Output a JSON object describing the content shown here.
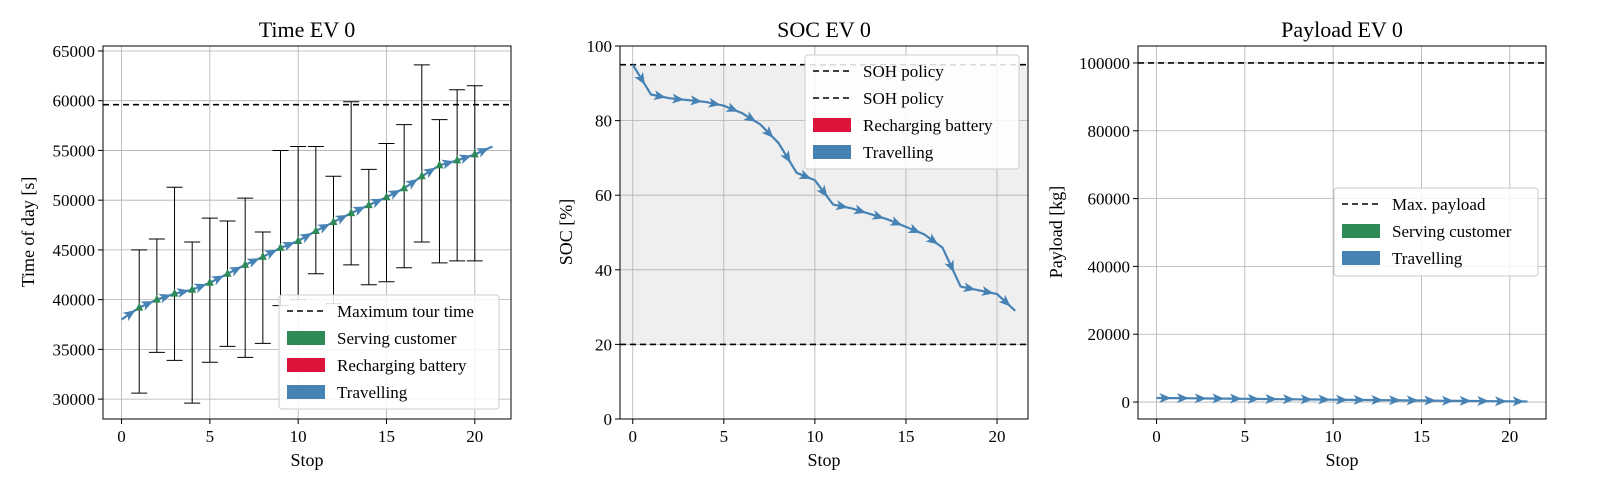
{
  "colors": {
    "travel": "#4682b4",
    "serve": "#2e8b57",
    "recharge": "#dc143c",
    "grid": "#b0b0b0",
    "policy_band": "#efefef"
  },
  "chart_data": [
    {
      "type": "line",
      "title": "Time EV 0",
      "xlabel": "Stop",
      "ylabel": "Time of day [s]",
      "xlim": [
        -1.05,
        22.05
      ],
      "ylim": [
        28000,
        65500
      ],
      "x_ticks": [
        0,
        5,
        10,
        15,
        20
      ],
      "y_ticks": [
        30000,
        35000,
        40000,
        45000,
        50000,
        55000,
        60000,
        65000
      ],
      "grid": true,
      "legend_position": "lower right",
      "legend": [
        {
          "label": "Maximum tour time",
          "kind": "dashed"
        },
        {
          "label": "Serving customer",
          "kind": "patch",
          "color": "#2e8b57"
        },
        {
          "label": "Recharging battery",
          "kind": "patch",
          "color": "#dc143c"
        },
        {
          "label": "Travelling",
          "kind": "patch",
          "color": "#4682b4"
        }
      ],
      "hlines": [
        {
          "y": 59600,
          "style": "dashed"
        }
      ],
      "travel": {
        "x": [
          0,
          1,
          2,
          3,
          4,
          5,
          6,
          7,
          8,
          9,
          10,
          11,
          12,
          13,
          14,
          15,
          16,
          17,
          18,
          19,
          20,
          21
        ],
        "y": [
          38000,
          39200,
          40000,
          40600,
          41000,
          41700,
          42600,
          43500,
          44300,
          45200,
          45900,
          46900,
          47800,
          48700,
          49500,
          50300,
          51200,
          52400,
          53500,
          54000,
          54600,
          55400
        ]
      },
      "time_windows": [
        {
          "x": 1,
          "low": 30600,
          "high": 45000
        },
        {
          "x": 2,
          "low": 34700,
          "high": 46100
        },
        {
          "x": 3,
          "low": 33900,
          "high": 51300
        },
        {
          "x": 4,
          "low": 29600,
          "high": 45800
        },
        {
          "x": 5,
          "low": 33700,
          "high": 48200
        },
        {
          "x": 6,
          "low": 35300,
          "high": 47900
        },
        {
          "x": 7,
          "low": 34200,
          "high": 50200
        },
        {
          "x": 8,
          "low": 35600,
          "high": 46800
        },
        {
          "x": 9,
          "low": 39400,
          "high": 55000
        },
        {
          "x": 10,
          "low": 40000,
          "high": 55400
        },
        {
          "x": 11,
          "low": 42600,
          "high": 55400
        },
        {
          "x": 12,
          "low": 39600,
          "high": 52400
        },
        {
          "x": 13,
          "low": 43500,
          "high": 59900
        },
        {
          "x": 14,
          "low": 41500,
          "high": 53100
        },
        {
          "x": 15,
          "low": 41800,
          "high": 55700
        },
        {
          "x": 16,
          "low": 43200,
          "high": 57600
        },
        {
          "x": 17,
          "low": 45800,
          "high": 63600
        },
        {
          "x": 18,
          "low": 43700,
          "high": 58100
        },
        {
          "x": 19,
          "low": 43900,
          "high": 61100
        },
        {
          "x": 20,
          "low": 43900,
          "high": 61500
        }
      ]
    },
    {
      "type": "line",
      "title": "SOC EV 0",
      "xlabel": "Stop",
      "ylabel": "SOC [%]",
      "xlim": [
        -0.7,
        21.7
      ],
      "ylim": [
        0,
        100
      ],
      "x_ticks": [
        0,
        5,
        10,
        15,
        20
      ],
      "y_ticks": [
        0,
        20,
        40,
        60,
        80,
        100
      ],
      "grid": true,
      "legend_position": "upper right",
      "legend": [
        {
          "label": "SOH policy",
          "kind": "dashed"
        },
        {
          "label": "SOH policy",
          "kind": "dashed"
        },
        {
          "label": "Recharging battery",
          "kind": "patch",
          "color": "#dc143c"
        },
        {
          "label": "Travelling",
          "kind": "patch",
          "color": "#4682b4"
        }
      ],
      "hlines": [
        {
          "y": 95,
          "style": "dashed"
        },
        {
          "y": 20,
          "style": "dashed"
        }
      ],
      "band": [
        20,
        95
      ],
      "travel": {
        "x": [
          0,
          1,
          2,
          3,
          4,
          5,
          6,
          7,
          8,
          9,
          10,
          11,
          12,
          13,
          14,
          15,
          16,
          17,
          18,
          19,
          20,
          21
        ],
        "y": [
          95,
          87,
          86,
          85.5,
          85,
          84,
          82,
          79,
          74,
          66,
          64,
          57.5,
          56.5,
          55,
          53.5,
          51.5,
          49.5,
          46,
          35.5,
          34.5,
          33.5,
          29
        ]
      }
    },
    {
      "type": "line",
      "title": "Payload EV 0",
      "xlabel": "Stop",
      "ylabel": "Payload [kg]",
      "xlim": [
        -1.05,
        22.05
      ],
      "ylim": [
        -5000,
        105000
      ],
      "x_ticks": [
        0,
        5,
        10,
        15,
        20
      ],
      "y_ticks": [
        0,
        20000,
        40000,
        60000,
        80000,
        100000
      ],
      "grid": true,
      "legend_position": "center right",
      "legend": [
        {
          "label": "Max. payload",
          "kind": "dashed"
        },
        {
          "label": "Serving customer",
          "kind": "patch",
          "color": "#2e8b57"
        },
        {
          "label": "Travelling",
          "kind": "patch",
          "color": "#4682b4"
        }
      ],
      "hlines": [
        {
          "y": 100000,
          "style": "dashed"
        }
      ],
      "travel": {
        "x": [
          0,
          1,
          2,
          3,
          4,
          5,
          6,
          7,
          8,
          9,
          10,
          11,
          12,
          13,
          14,
          15,
          16,
          17,
          18,
          19,
          20,
          21
        ],
        "y": [
          1200,
          1150,
          1100,
          1050,
          1000,
          950,
          900,
          850,
          800,
          750,
          700,
          650,
          600,
          550,
          500,
          450,
          400,
          350,
          300,
          250,
          200,
          150
        ]
      }
    }
  ]
}
